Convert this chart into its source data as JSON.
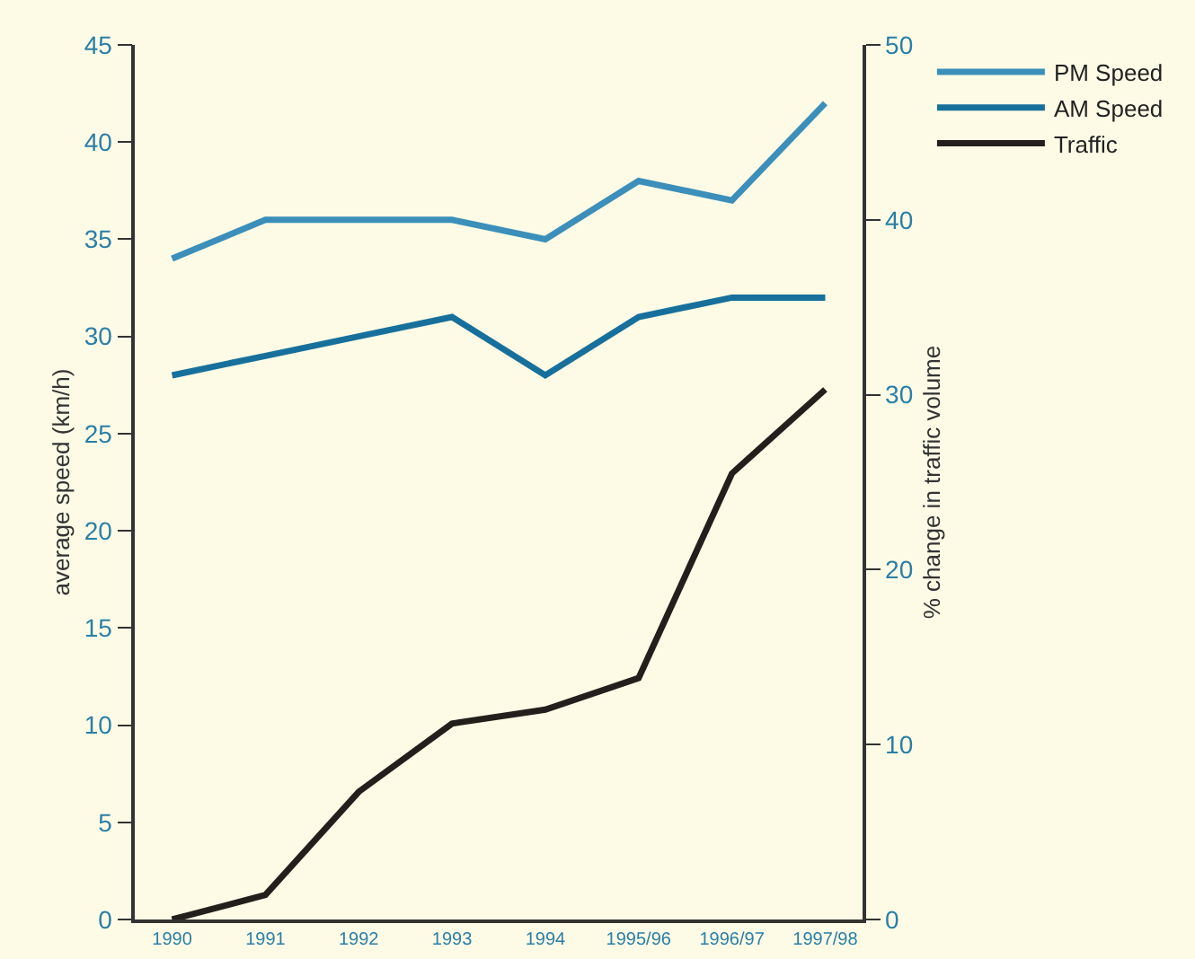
{
  "chart_data": {
    "type": "line",
    "ylabel": "average speed (km/h)",
    "y2label": "% change in traffic volume",
    "categories": [
      "1990",
      "1991",
      "1992",
      "1993",
      "1994",
      "1995/96",
      "1996/97",
      "1997/98"
    ],
    "series": [
      {
        "name": "PM Speed",
        "color": "#3b8fba",
        "values": [
          34,
          36,
          36,
          36,
          35,
          38,
          37,
          42
        ]
      },
      {
        "name": "AM Speed",
        "color": "#17709c",
        "values": [
          28,
          29,
          30,
          31,
          28,
          31,
          32,
          32
        ]
      },
      {
        "name": "Traffic",
        "color": "#231f1c",
        "axis": "y2",
        "values": [
          0,
          1.4,
          7.3,
          11.2,
          12,
          13.8,
          25.5,
          30.3
        ]
      }
    ],
    "ylim": [
      0,
      45
    ],
    "yticks": [
      0,
      5,
      10,
      15,
      20,
      25,
      30,
      35,
      40,
      45
    ],
    "y2lim": [
      0,
      50
    ],
    "y2ticks": [
      0,
      10,
      20,
      30,
      40,
      50
    ],
    "grid": false,
    "legend": "top right",
    "marker": "none",
    "line_style": "solid"
  }
}
